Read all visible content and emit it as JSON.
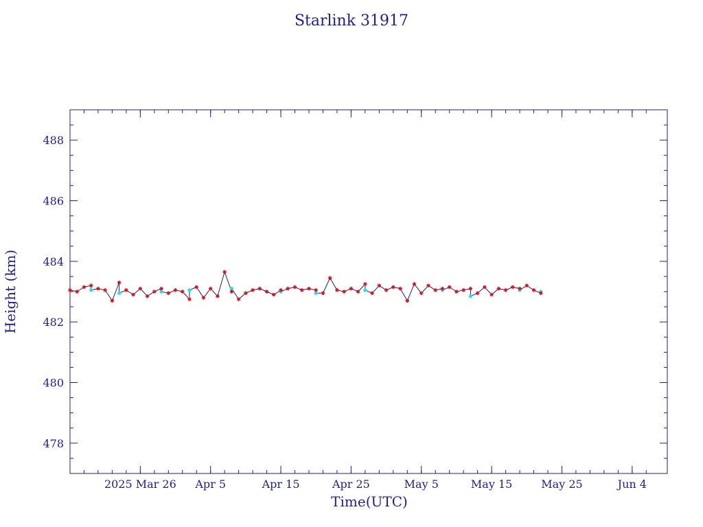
{
  "colors": {
    "axis": "#1c1c9c",
    "line": "#1c1c9c",
    "marker_primary": "#e01010",
    "marker_secondary": "#20e0f0"
  },
  "chart_data": {
    "type": "line",
    "title": "Starlink 31917",
    "xlabel": "Time(UTC)",
    "ylabel": "Height (km)",
    "x_unit": "date",
    "xlim": [
      "2025-03-16",
      "2025-06-09"
    ],
    "ylim": [
      477,
      489
    ],
    "x_ticks": [
      {
        "date": "2025-03-26",
        "label": "2025 Mar 26"
      },
      {
        "date": "2025-04-05",
        "label": "Apr  5"
      },
      {
        "date": "2025-04-15",
        "label": "Apr 15"
      },
      {
        "date": "2025-04-25",
        "label": "Apr 25"
      },
      {
        "date": "2025-05-05",
        "label": "May  5"
      },
      {
        "date": "2025-05-15",
        "label": "May 15"
      },
      {
        "date": "2025-05-25",
        "label": "May 25"
      },
      {
        "date": "2025-06-04",
        "label": "Jun  4"
      }
    ],
    "y_ticks": [
      478,
      480,
      482,
      484,
      486,
      488
    ],
    "x_minor_days": [
      16,
      18,
      20,
      22,
      24,
      26,
      28,
      30,
      32,
      34,
      36,
      38,
      40,
      42,
      44,
      46,
      48,
      50,
      52,
      54,
      56,
      58,
      60,
      62,
      64,
      66,
      68,
      70,
      72,
      74,
      76,
      78,
      80,
      82,
      84,
      86,
      88,
      90,
      92,
      94,
      96,
      98
    ],
    "y_minor": [
      477.5,
      478.5,
      479,
      479.5,
      480.5,
      481,
      481.5,
      482.5,
      483,
      483.5,
      484.5,
      485,
      485.5,
      486.5,
      487,
      487.5,
      488.5
    ],
    "series": [
      {
        "marker": "asterisk",
        "x": [
          "2025-03-16",
          "2025-03-17",
          "2025-03-18",
          "2025-03-19",
          "2025-03-20",
          "2025-03-21",
          "2025-03-22",
          "2025-03-23",
          "2025-03-24",
          "2025-03-25",
          "2025-03-26",
          "2025-03-27",
          "2025-03-28",
          "2025-03-29",
          "2025-03-30",
          "2025-03-31",
          "2025-04-01",
          "2025-04-02",
          "2025-04-03",
          "2025-04-04",
          "2025-04-05",
          "2025-04-06",
          "2025-04-07",
          "2025-04-08",
          "2025-04-09",
          "2025-04-10",
          "2025-04-11",
          "2025-04-12",
          "2025-04-13",
          "2025-04-14",
          "2025-04-15",
          "2025-04-16",
          "2025-04-17",
          "2025-04-18",
          "2025-04-19",
          "2025-04-20",
          "2025-04-21",
          "2025-04-22",
          "2025-04-23",
          "2025-04-24",
          "2025-04-25",
          "2025-04-26",
          "2025-04-27",
          "2025-04-28",
          "2025-04-29",
          "2025-04-30",
          "2025-05-01",
          "2025-05-02",
          "2025-05-03",
          "2025-05-04",
          "2025-05-05",
          "2025-05-06",
          "2025-05-07",
          "2025-05-08",
          "2025-05-09",
          "2025-05-10",
          "2025-05-11",
          "2025-05-12",
          "2025-05-13",
          "2025-05-14",
          "2025-05-15",
          "2025-05-16",
          "2025-05-17",
          "2025-05-18",
          "2025-05-19",
          "2025-05-20",
          "2025-05-21",
          "2025-05-22"
        ],
        "y": [
          483.05,
          483.0,
          483.15,
          483.2,
          483.1,
          483.05,
          482.7,
          483.3,
          483.05,
          482.9,
          483.1,
          482.85,
          483.0,
          483.1,
          482.95,
          483.05,
          483.0,
          482.75,
          483.15,
          482.8,
          483.1,
          482.85,
          483.65,
          483.0,
          482.75,
          482.95,
          483.05,
          483.1,
          483.0,
          482.9,
          483.05,
          483.1,
          483.15,
          483.05,
          483.1,
          483.05,
          482.95,
          483.45,
          483.05,
          483.0,
          483.1,
          483.0,
          483.25,
          482.95,
          483.2,
          483.05,
          483.15,
          483.1,
          482.7,
          483.25,
          482.95,
          483.2,
          483.05,
          483.1,
          483.15,
          483.0,
          483.05,
          483.1,
          482.95,
          483.15,
          482.9,
          483.1,
          483.05,
          483.15,
          483.1,
          483.2,
          483.05,
          482.95
        ]
      },
      {
        "marker": "dot",
        "x": [
          "2025-03-19",
          "2025-03-23",
          "2025-03-29",
          "2025-04-02",
          "2025-04-08",
          "2025-04-15",
          "2025-04-20",
          "2025-04-27",
          "2025-05-03",
          "2025-05-08",
          "2025-05-12",
          "2025-05-19",
          "2025-05-22"
        ],
        "y": [
          483.05,
          482.95,
          483.0,
          483.05,
          483.1,
          483.0,
          482.95,
          483.05,
          482.7,
          483.05,
          482.85,
          483.05,
          483.0
        ]
      }
    ]
  }
}
